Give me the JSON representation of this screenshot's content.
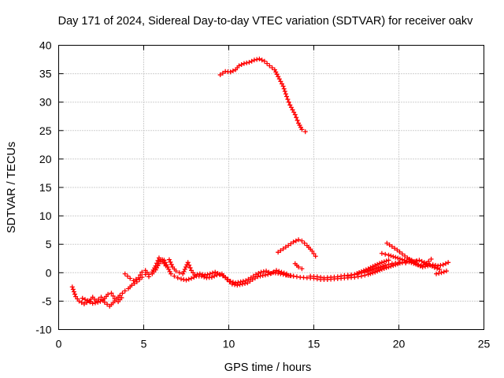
{
  "chart_data": {
    "type": "scatter",
    "title": "Day 171 of 2024, Sidereal Day-to-day VTEC variation (SDTVAR) for receiver oakv",
    "xlabel": "GPS time / hours",
    "ylabel": "SDTVAR / TECUs",
    "xlim": [
      0,
      25
    ],
    "ylim": [
      -10,
      40
    ],
    "xticks": [
      0,
      5,
      10,
      15,
      20,
      25
    ],
    "yticks": [
      -10,
      -5,
      0,
      5,
      10,
      15,
      20,
      25,
      30,
      35,
      40
    ],
    "grid": true,
    "marker": "plus",
    "series": [
      {
        "name": "track-high",
        "color": "#ff0000",
        "points": [
          [
            9.5,
            34.8
          ],
          [
            9.8,
            35.4
          ],
          [
            10.1,
            35.3
          ],
          [
            10.4,
            35.7
          ],
          [
            10.6,
            36.4
          ],
          [
            10.9,
            36.8
          ],
          [
            11.2,
            37.0
          ],
          [
            11.5,
            37.4
          ],
          [
            11.8,
            37.6
          ],
          [
            12.1,
            37.2
          ],
          [
            12.4,
            36.4
          ],
          [
            12.7,
            35.7
          ],
          [
            12.9,
            34.5
          ],
          [
            13.2,
            32.8
          ],
          [
            13.4,
            31.0
          ],
          [
            13.6,
            29.5
          ],
          [
            13.9,
            27.8
          ],
          [
            14.1,
            26.3
          ],
          [
            14.3,
            25.2
          ],
          [
            14.5,
            24.8
          ]
        ]
      },
      {
        "name": "track-hump",
        "color": "#ff0000",
        "points": [
          [
            12.9,
            3.6
          ],
          [
            13.2,
            4.2
          ],
          [
            13.5,
            4.8
          ],
          [
            13.8,
            5.4
          ],
          [
            14.1,
            5.8
          ],
          [
            14.3,
            5.6
          ],
          [
            14.6,
            4.8
          ],
          [
            14.9,
            3.8
          ],
          [
            15.1,
            2.9
          ]
        ]
      },
      {
        "name": "track-hump-small",
        "color": "#ff0000",
        "points": [
          [
            13.9,
            1.6
          ],
          [
            14.1,
            1.0
          ],
          [
            14.3,
            0.7
          ]
        ]
      },
      {
        "name": "track-early",
        "color": "#ff0000",
        "points": [
          [
            0.8,
            -2.5
          ],
          [
            1.0,
            -4.2
          ],
          [
            1.2,
            -5.0
          ],
          [
            1.5,
            -5.5
          ],
          [
            1.8,
            -5.0
          ],
          [
            2.0,
            -4.3
          ],
          [
            2.2,
            -5.0
          ],
          [
            2.5,
            -4.3
          ],
          [
            2.7,
            -5.2
          ],
          [
            3.0,
            -5.9
          ],
          [
            3.2,
            -5.3
          ],
          [
            3.4,
            -4.6
          ],
          [
            3.6,
            -4.0
          ],
          [
            3.9,
            -3.2
          ],
          [
            4.1,
            -2.8
          ],
          [
            4.3,
            -2.2
          ],
          [
            4.6,
            -1.6
          ],
          [
            4.9,
            -0.8
          ],
          [
            5.1,
            -0.3
          ],
          [
            5.3,
            -0.7
          ],
          [
            5.5,
            -0.2
          ],
          [
            5.7,
            0.5
          ],
          [
            5.9,
            1.6
          ],
          [
            6.1,
            2.3
          ]
        ]
      },
      {
        "name": "track-early-b",
        "color": "#ff0000",
        "points": [
          [
            1.4,
            -4.5
          ],
          [
            1.7,
            -4.9
          ],
          [
            2.0,
            -5.4
          ],
          [
            2.3,
            -5.2
          ],
          [
            2.6,
            -4.9
          ],
          [
            2.9,
            -3.8
          ],
          [
            3.1,
            -3.6
          ],
          [
            3.3,
            -4.6
          ],
          [
            3.5,
            -5.1
          ],
          [
            3.7,
            -4.4
          ]
        ]
      },
      {
        "name": "track-rise",
        "color": "#ff0000",
        "points": [
          [
            3.9,
            -0.2
          ],
          [
            4.2,
            -1.0
          ],
          [
            4.4,
            -1.4
          ],
          [
            4.7,
            -0.9
          ],
          [
            4.9,
            0.1
          ],
          [
            5.1,
            0.4
          ],
          [
            5.3,
            -0.3
          ],
          [
            5.5,
            0.1
          ],
          [
            5.7,
            1.2
          ],
          [
            5.9,
            2.6
          ],
          [
            6.1,
            2.0
          ],
          [
            6.3,
            1.2
          ]
        ]
      },
      {
        "name": "track-mid-a",
        "color": "#ff0000",
        "points": [
          [
            6.2,
            2.2
          ],
          [
            6.4,
            1.0
          ],
          [
            6.6,
            -0.2
          ],
          [
            6.8,
            -0.6
          ],
          [
            7.0,
            -0.9
          ],
          [
            7.2,
            -1.1
          ],
          [
            7.5,
            -1.3
          ],
          [
            7.8,
            -1.0
          ],
          [
            8.1,
            -0.6
          ],
          [
            8.4,
            -0.6
          ],
          [
            8.7,
            -0.9
          ],
          [
            9.0,
            -0.8
          ],
          [
            9.3,
            -0.4
          ],
          [
            9.6,
            -0.2
          ],
          [
            9.9,
            -1.2
          ],
          [
            10.2,
            -2.0
          ],
          [
            10.5,
            -2.2
          ],
          [
            10.8,
            -2.0
          ],
          [
            11.1,
            -1.8
          ],
          [
            11.4,
            -1.2
          ],
          [
            11.7,
            -0.7
          ],
          [
            12.0,
            -0.5
          ],
          [
            12.3,
            -0.3
          ],
          [
            12.6,
            0.0
          ],
          [
            12.9,
            -0.1
          ],
          [
            13.2,
            -0.3
          ],
          [
            13.5,
            -0.5
          ],
          [
            13.8,
            -0.6
          ]
        ]
      },
      {
        "name": "track-mid-b",
        "color": "#ff0000",
        "points": [
          [
            6.5,
            2.3
          ],
          [
            6.7,
            1.0
          ],
          [
            6.9,
            0.3
          ],
          [
            7.1,
            0.0
          ],
          [
            7.3,
            -0.2
          ],
          [
            7.6,
            1.8
          ],
          [
            7.8,
            0.4
          ],
          [
            8.0,
            -0.4
          ],
          [
            8.3,
            -0.2
          ],
          [
            8.6,
            -0.4
          ],
          [
            8.9,
            -0.2
          ],
          [
            9.2,
            0.1
          ],
          [
            9.5,
            -0.3
          ],
          [
            9.8,
            -0.8
          ],
          [
            10.1,
            -1.5
          ],
          [
            10.4,
            -1.8
          ],
          [
            10.7,
            -1.6
          ],
          [
            11.0,
            -1.4
          ],
          [
            11.3,
            -0.9
          ],
          [
            11.6,
            -0.3
          ],
          [
            11.9,
            0.1
          ],
          [
            12.2,
            0.3
          ],
          [
            12.5,
            -0.1
          ],
          [
            12.8,
            0.4
          ],
          [
            13.1,
            0.1
          ],
          [
            13.4,
            -0.2
          ]
        ]
      },
      {
        "name": "track-late-a",
        "color": "#ff0000",
        "points": [
          [
            13.4,
            -0.4
          ],
          [
            13.8,
            -0.6
          ],
          [
            14.2,
            -0.8
          ],
          [
            14.6,
            -0.9
          ],
          [
            15.0,
            -1.0
          ],
          [
            15.4,
            -1.2
          ],
          [
            15.8,
            -1.2
          ],
          [
            16.2,
            -1.1
          ],
          [
            16.6,
            -1.0
          ],
          [
            17.0,
            -0.9
          ],
          [
            17.4,
            -0.8
          ],
          [
            17.8,
            -0.6
          ],
          [
            18.2,
            -0.3
          ],
          [
            18.6,
            0.1
          ],
          [
            19.0,
            0.6
          ],
          [
            19.4,
            1.0
          ],
          [
            19.8,
            1.4
          ],
          [
            20.2,
            1.8
          ],
          [
            20.6,
            2.0
          ],
          [
            21.0,
            2.0
          ]
        ]
      },
      {
        "name": "track-late-b",
        "color": "#ff0000",
        "points": [
          [
            14.8,
            -0.6
          ],
          [
            15.2,
            -0.7
          ],
          [
            15.6,
            -0.9
          ],
          [
            16.0,
            -0.8
          ],
          [
            16.4,
            -0.7
          ],
          [
            16.8,
            -0.5
          ],
          [
            17.2,
            -0.4
          ],
          [
            17.6,
            -0.2
          ],
          [
            18.0,
            0.1
          ],
          [
            18.4,
            0.5
          ],
          [
            18.8,
            0.9
          ],
          [
            19.2,
            1.3
          ],
          [
            19.6,
            1.6
          ],
          [
            20.0,
            1.8
          ],
          [
            20.4,
            1.7
          ]
        ]
      },
      {
        "name": "track-late-c",
        "color": "#ff0000",
        "points": [
          [
            17.0,
            -0.6
          ],
          [
            17.4,
            -0.3
          ],
          [
            17.8,
            0.2
          ],
          [
            18.2,
            0.7
          ],
          [
            18.6,
            1.3
          ],
          [
            19.0,
            1.8
          ],
          [
            19.4,
            2.2
          ]
        ]
      },
      {
        "name": "track-end-a",
        "color": "#ff0000",
        "points": [
          [
            19.3,
            5.2
          ],
          [
            19.6,
            4.6
          ],
          [
            19.9,
            4.0
          ],
          [
            20.2,
            3.3
          ],
          [
            20.5,
            2.6
          ],
          [
            20.8,
            2.0
          ],
          [
            21.1,
            1.4
          ],
          [
            21.4,
            1.0
          ],
          [
            21.7,
            1.2
          ],
          [
            22.0,
            1.4
          ],
          [
            22.3,
            1.2
          ],
          [
            22.6,
            1.4
          ],
          [
            22.9,
            1.8
          ]
        ]
      },
      {
        "name": "track-end-b",
        "color": "#ff0000",
        "points": [
          [
            19.0,
            3.4
          ],
          [
            19.4,
            3.1
          ],
          [
            19.8,
            2.7
          ],
          [
            20.2,
            2.3
          ],
          [
            20.6,
            1.9
          ],
          [
            21.0,
            1.5
          ],
          [
            21.3,
            1.2
          ],
          [
            21.6,
            1.6
          ],
          [
            21.9,
            2.4
          ]
        ]
      },
      {
        "name": "track-end-c",
        "color": "#ff0000",
        "points": [
          [
            20.6,
            2.4
          ],
          [
            20.9,
            2.0
          ],
          [
            21.2,
            2.2
          ],
          [
            21.5,
            1.8
          ],
          [
            21.8,
            1.4
          ],
          [
            22.1,
            0.9
          ],
          [
            22.4,
            0.6
          ]
        ]
      },
      {
        "name": "track-end-d",
        "color": "#ff0000",
        "points": [
          [
            22.2,
            -0.2
          ],
          [
            22.5,
            0.0
          ],
          [
            22.8,
            0.3
          ]
        ]
      }
    ]
  }
}
